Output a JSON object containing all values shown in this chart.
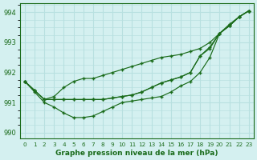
{
  "background_color": "#d4f0f0",
  "grid_color": "#b8e0e0",
  "line_color": "#1a6b1a",
  "xlabel": "Graphe pression niveau de la mer (hPa)",
  "ylim": [
    989.8,
    994.3
  ],
  "xlim": [
    -0.5,
    23.5
  ],
  "yticks": [
    990,
    991,
    992,
    993,
    994
  ],
  "xtick_labels": [
    "0",
    "1",
    "2",
    "3",
    "4",
    "5",
    "6",
    "7",
    "8",
    "9",
    "10",
    "11",
    "12",
    "13",
    "14",
    "15",
    "16",
    "17",
    "18",
    "19",
    "20",
    "21",
    "22",
    "23"
  ],
  "line_upper": [
    991.7,
    991.4,
    991.1,
    991.2,
    991.5,
    991.7,
    991.8,
    991.8,
    991.9,
    992.0,
    992.1,
    992.2,
    992.3,
    992.4,
    992.5,
    992.55,
    992.6,
    992.7,
    992.8,
    993.0,
    993.3,
    993.6,
    993.85,
    994.05
  ],
  "line_mid1": [
    991.7,
    991.4,
    991.1,
    991.1,
    991.1,
    991.1,
    991.1,
    991.1,
    991.1,
    991.15,
    991.2,
    991.25,
    991.35,
    991.5,
    991.65,
    991.75,
    991.85,
    992.0,
    992.55,
    992.8,
    993.3,
    993.55,
    993.85,
    994.05
  ],
  "line_mid2": [
    991.7,
    991.4,
    991.1,
    991.1,
    991.1,
    991.1,
    991.1,
    991.1,
    991.1,
    991.15,
    991.2,
    991.25,
    991.35,
    991.5,
    991.65,
    991.75,
    991.85,
    992.0,
    992.55,
    992.85,
    993.3,
    993.55,
    993.85,
    994.05
  ],
  "line_lower": [
    991.7,
    991.35,
    991.0,
    990.85,
    990.65,
    990.5,
    990.5,
    990.55,
    990.7,
    990.85,
    991.0,
    991.05,
    991.1,
    991.15,
    991.2,
    991.35,
    991.55,
    991.7,
    992.0,
    992.5,
    993.3,
    993.55,
    993.85,
    994.05
  ]
}
